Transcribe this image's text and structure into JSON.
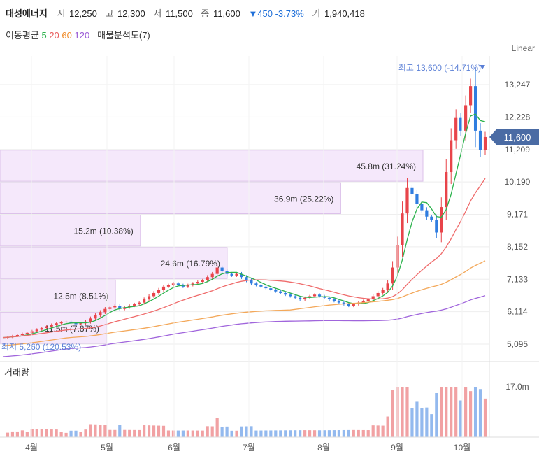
{
  "header": {
    "name": "대성에너지",
    "open_label": "시",
    "open": "12,250",
    "high_label": "고",
    "high": "12,300",
    "low_label": "저",
    "low": "11,500",
    "close_label": "종",
    "close": "11,600",
    "change": "▼450 -3.73%",
    "volume_label": "거",
    "volume": "1,940,418"
  },
  "indicators": {
    "ma_label": "이동평균",
    "ma5": "5",
    "ma20": "20",
    "ma60": "60",
    "ma120": "120",
    "profile_label": "매물분석도(7)"
  },
  "scale_label": "Linear",
  "volume_label": "거래량",
  "colors": {
    "up": "#e8444a",
    "down": "#2f7de0",
    "ma5": "#2bb24c",
    "ma20": "#ef6b6b",
    "ma60": "#f3a85a",
    "ma120": "#a065dc",
    "profile": "#f5e8fb"
  },
  "chart_data": {
    "type": "candlestick",
    "y_ticks": [
      "13,247",
      "12,228",
      "11,209",
      "10,190",
      "9,171",
      "8,152",
      "7,133",
      "6,114",
      "5,095"
    ],
    "x_ticks": [
      "4월",
      "5월",
      "6월",
      "7월",
      "8월",
      "9월",
      "10월"
    ],
    "current_price": "11,600",
    "high_annotation": "최고 13,600 (-14.71%)",
    "low_annotation": "최저 5,260 (120.53%)",
    "volume_tick": "17.0m",
    "volume_profile": [
      {
        "price_low": 5095,
        "price_high": 6114,
        "label": "11.5m (7.87%)",
        "value": 11.5
      },
      {
        "price_low": 6114,
        "price_high": 7133,
        "label": "12.5m (8.51%)",
        "value": 12.5
      },
      {
        "price_low": 7133,
        "price_high": 8152,
        "label": "24.6m (16.79%)",
        "value": 24.6
      },
      {
        "price_low": 8152,
        "price_high": 9171,
        "label": "15.2m (10.38%)",
        "value": 15.2
      },
      {
        "price_low": 9171,
        "price_high": 10190,
        "label": "36.9m (25.22%)",
        "value": 36.9
      },
      {
        "price_low": 10190,
        "price_high": 11209,
        "label": "45.8m (31.24%)",
        "value": 45.8
      }
    ],
    "close_series": [
      5300,
      5320,
      5350,
      5380,
      5420,
      5450,
      5500,
      5550,
      5600,
      5650,
      5700,
      5750,
      5780,
      5800,
      5760,
      5720,
      5750,
      5800,
      5900,
      6000,
      6100,
      6200,
      6250,
      6300,
      6200,
      6250,
      6300,
      6350,
      6400,
      6500,
      6600,
      6700,
      6800,
      6900,
      6950,
      7000,
      6950,
      6900,
      6950,
      7000,
      7050,
      7100,
      7200,
      7300,
      7500,
      7400,
      7300,
      7250,
      7300,
      7200,
      7100,
      7000,
      6950,
      6900,
      6850,
      6800,
      6750,
      6700,
      6650,
      6600,
      6550,
      6500,
      6550,
      6600,
      6650,
      6600,
      6550,
      6500,
      6450,
      6400,
      6350,
      6300,
      6350,
      6400,
      6450,
      6500,
      6600,
      6700,
      6800,
      7000,
      7500,
      8200,
      9200,
      10000,
      9800,
      9500,
      9300,
      9100,
      9000,
      8600,
      9400,
      10500,
      11500,
      12200,
      11800,
      12600,
      13200,
      11800,
      11200,
      11600
    ]
  }
}
